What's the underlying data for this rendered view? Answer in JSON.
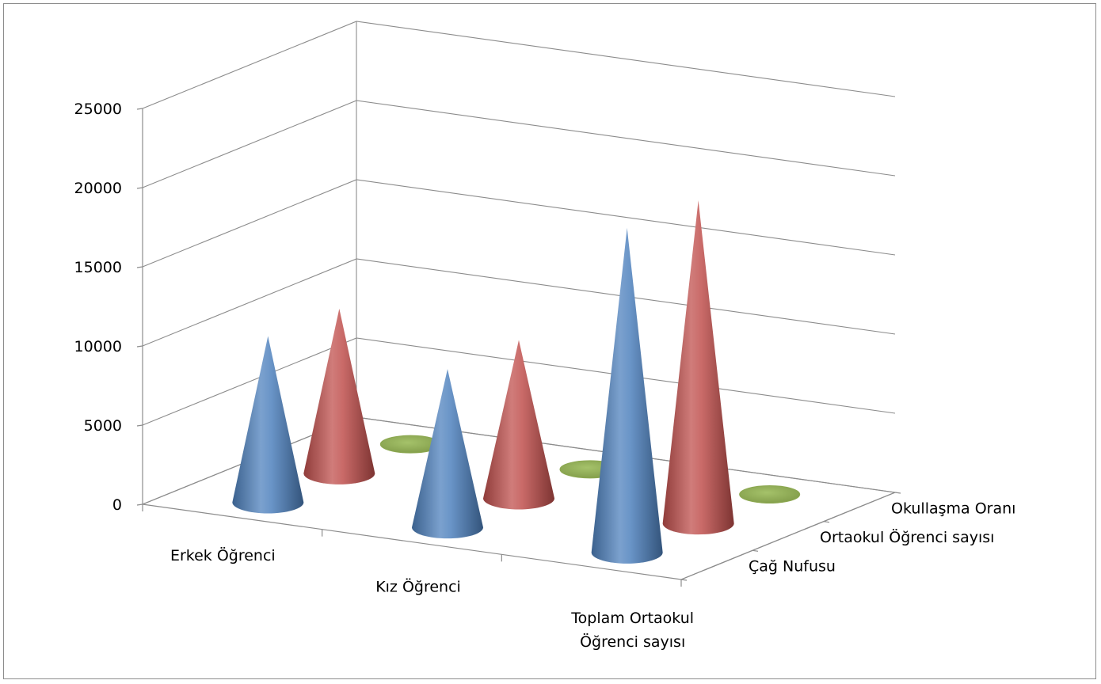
{
  "chart_data": {
    "type": "cone3d",
    "title": "",
    "y_ticks": [
      "0",
      "5000",
      "10000",
      "15000",
      "20000",
      "25000"
    ],
    "ylim": [
      0,
      25000
    ],
    "categories": [
      "Erkek Öğrenci",
      "Kız Öğrenci",
      "Toplam Ortaokul Öğrenci sayısı"
    ],
    "category_label_lines": [
      [
        "Erkek Öğrenci"
      ],
      [
        "Kız Öğrenci"
      ],
      [
        "Toplam Ortaokul",
        "Öğrenci sayısı"
      ]
    ],
    "series": [
      {
        "name": "Çağ Nufusu",
        "color": "#4f81bd",
        "values": [
          10500,
          10000,
          20500
        ]
      },
      {
        "name": "Ortaokul Öğrenci sayısı",
        "color": "#c0504d",
        "values": [
          10400,
          10000,
          20400
        ]
      },
      {
        "name": "Okullaşma Oranı",
        "color": "#9bbb59",
        "values": [
          98,
          98,
          98
        ]
      }
    ],
    "grid": true,
    "legend": "depth-axis"
  }
}
